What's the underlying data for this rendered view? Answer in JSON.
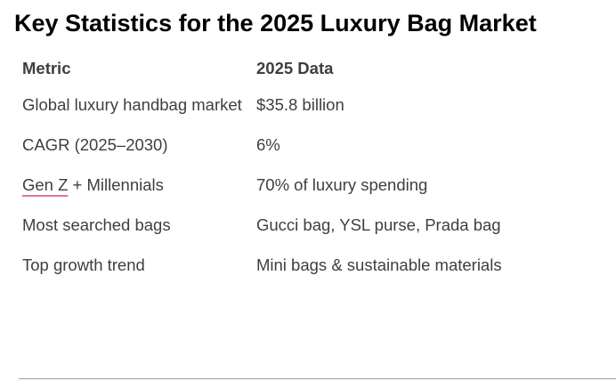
{
  "title": "Key Statistics for the 2025 Luxury Bag Market",
  "table": {
    "headers": [
      "Metric",
      "2025 Data"
    ],
    "rows": [
      {
        "metric": "Global luxury handbag market",
        "data": "$35.8 billion"
      },
      {
        "metric": "CAGR (2025–2030)",
        "data": "6%"
      },
      {
        "metric_prefix": "Gen Z",
        "metric_suffix": " + Millennials",
        "data": "70% of luxury spending"
      },
      {
        "metric": "Most searched bags",
        "data": "Gucci bag, YSL purse, Prada bag"
      },
      {
        "metric": "Top growth trend",
        "data": "Mini bags & sustainable materials"
      }
    ]
  }
}
